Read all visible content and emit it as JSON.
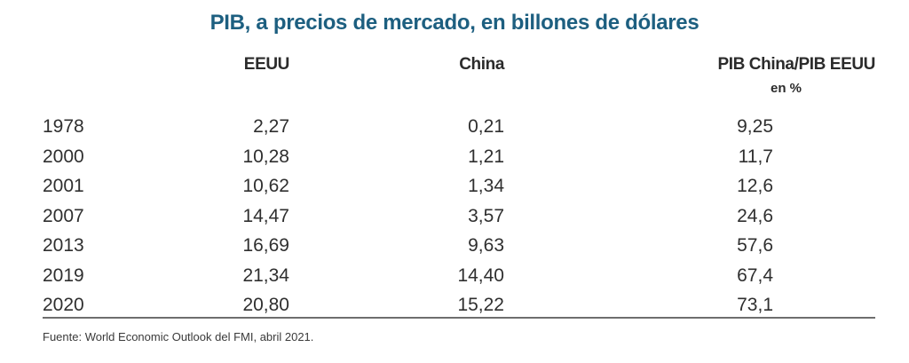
{
  "chart_data": {
    "type": "table",
    "title": "PIB, a precios de mercado, en billones de dólares",
    "columns": [
      "",
      "EEUU",
      "China",
      "PIB China/PIB EEUU"
    ],
    "column_subtitle": "en %",
    "rows": [
      {
        "year": "1978",
        "eeuu": "2,27",
        "china": "0,21",
        "ratio": "9,25"
      },
      {
        "year": "2000",
        "eeuu": "10,28",
        "china": "1,21",
        "ratio": "11,7"
      },
      {
        "year": "2001",
        "eeuu": "10,62",
        "china": "1,34",
        "ratio": "12,6"
      },
      {
        "year": "2007",
        "eeuu": "14,47",
        "china": "3,57",
        "ratio": "24,6"
      },
      {
        "year": "2013",
        "eeuu": "16,69",
        "china": "9,63",
        "ratio": "57,6"
      },
      {
        "year": "2019",
        "eeuu": "21,34",
        "china": "14,40",
        "ratio": "67,4"
      },
      {
        "year": "2020",
        "eeuu": "20,80",
        "china": "15,22",
        "ratio": "73,1"
      }
    ],
    "source": "Fuente: World Economic Outlook del FMI, abril 2021."
  },
  "colors": {
    "title": "#1d5f80",
    "text": "#2b2b2b",
    "rule": "#6e6e6e"
  }
}
